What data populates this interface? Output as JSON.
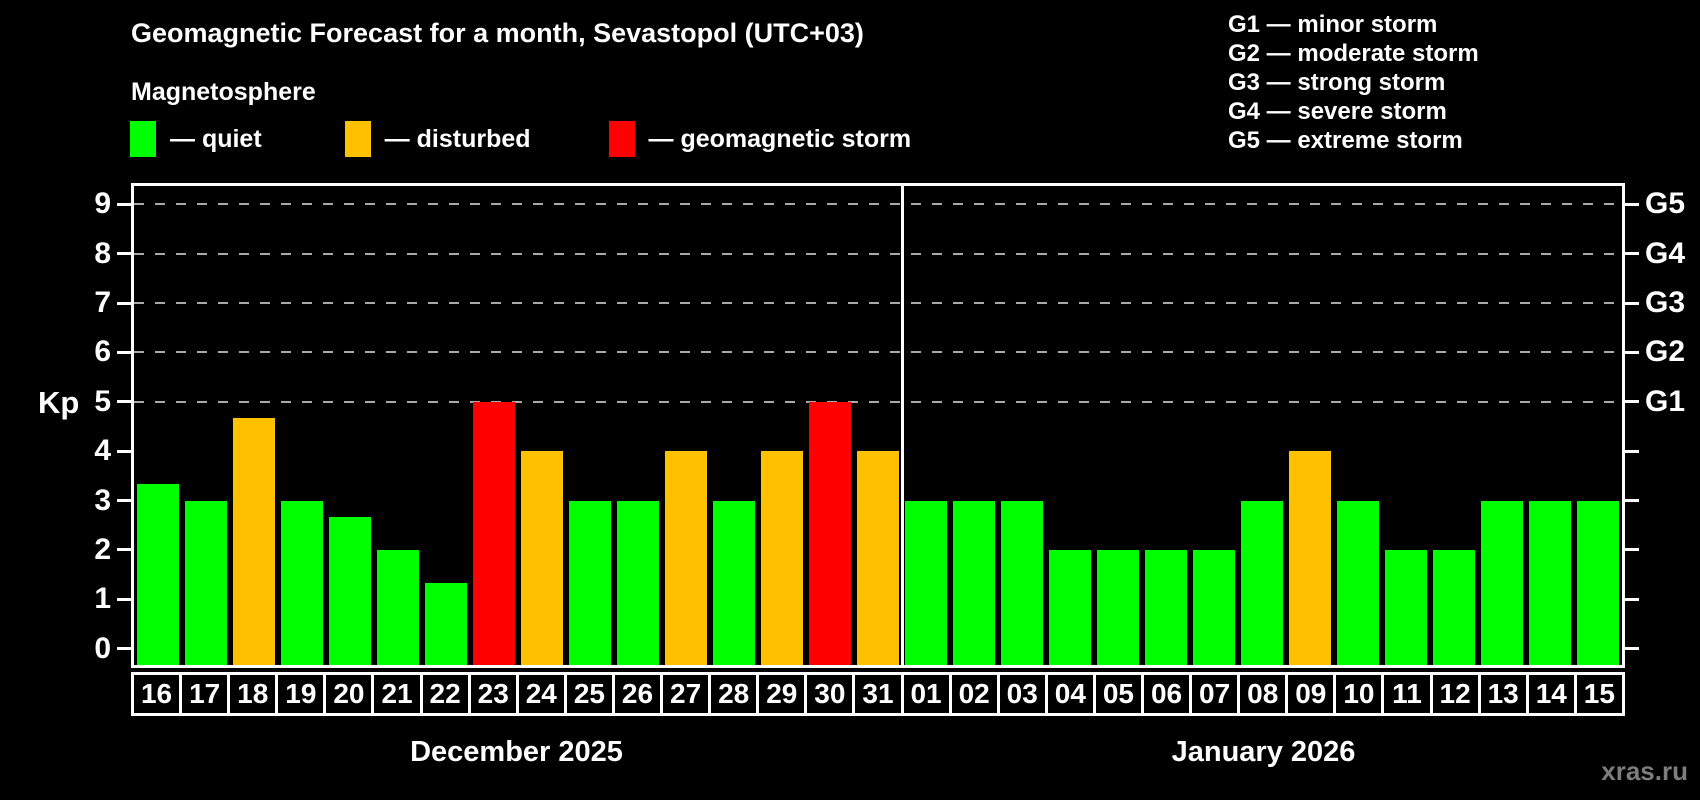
{
  "title": "Geomagnetic Forecast for a month, Sevastopol (UTC+03)",
  "subtitle": "Magnetosphere",
  "legend": {
    "items": [
      {
        "key": "quiet",
        "label": "— quiet",
        "color": "#00ff00"
      },
      {
        "key": "disturbed",
        "label": "— disturbed",
        "color": "#ffc000"
      },
      {
        "key": "storm",
        "label": "— geomagnetic storm",
        "color": "#ff0000"
      }
    ]
  },
  "g_scale_legend": [
    "G1 — minor storm",
    "G2 — moderate storm",
    "G3 — strong storm",
    "G4 — severe storm",
    "G5 — extreme storm"
  ],
  "watermark": "xras.ru",
  "chart_data": {
    "type": "bar",
    "title": "Geomagnetic Forecast for a month, Sevastopol (UTC+03)",
    "ylabel": "Kp",
    "ylim": [
      -0.33,
      9.37
    ],
    "y_ticks": [
      0,
      1,
      2,
      3,
      4,
      5,
      6,
      7,
      8,
      9
    ],
    "gridlines_kp": [
      5,
      6,
      7,
      8,
      9
    ],
    "grid": "dashed horizontal at Kp 5-9 only",
    "right_axis_labels": [
      {
        "kp": 5,
        "text": "G1"
      },
      {
        "kp": 6,
        "text": "G2"
      },
      {
        "kp": 7,
        "text": "G3"
      },
      {
        "kp": 8,
        "text": "G4"
      },
      {
        "kp": 9,
        "text": "G5"
      }
    ],
    "colors": {
      "quiet": "#00ff00",
      "disturbed": "#ffc000",
      "storm": "#ff0000"
    },
    "groups": [
      {
        "month_label": "December 2025",
        "days": [
          "16",
          "17",
          "18",
          "19",
          "20",
          "21",
          "22",
          "23",
          "24",
          "25",
          "26",
          "27",
          "28",
          "29",
          "30",
          "31"
        ],
        "values": [
          3.33,
          3,
          4.67,
          3,
          2.67,
          2,
          1.33,
          5,
          4,
          3,
          3,
          4,
          3,
          4,
          5,
          4
        ],
        "status": [
          "quiet",
          "quiet",
          "disturbed",
          "quiet",
          "quiet",
          "quiet",
          "quiet",
          "storm",
          "disturbed",
          "quiet",
          "quiet",
          "disturbed",
          "quiet",
          "disturbed",
          "storm",
          "disturbed"
        ]
      },
      {
        "month_label": "January 2026",
        "days": [
          "01",
          "02",
          "03",
          "04",
          "05",
          "06",
          "07",
          "08",
          "09",
          "10",
          "11",
          "12",
          "13",
          "14",
          "15"
        ],
        "values": [
          3,
          3,
          3,
          2,
          2,
          2,
          2,
          3,
          4,
          3,
          2,
          2,
          3,
          3,
          3
        ],
        "status": [
          "quiet",
          "quiet",
          "quiet",
          "quiet",
          "quiet",
          "quiet",
          "quiet",
          "quiet",
          "disturbed",
          "quiet",
          "quiet",
          "quiet",
          "quiet",
          "quiet",
          "quiet"
        ]
      }
    ]
  }
}
